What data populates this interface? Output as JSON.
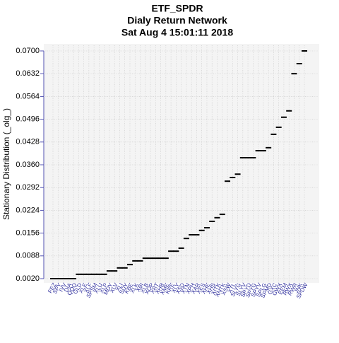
{
  "chart_data": {
    "type": "scatter",
    "title": "ETF_SPDR",
    "subtitle": "Dialy Return Network",
    "date": "Sat Aug  4 15:01:11 2018",
    "y_label": "Stationary Distribution (_olg_)",
    "categories": [
      "FEZ",
      "SPY",
      "IVV",
      "DIA",
      "QQQ",
      "GLD",
      "XLE",
      "XLF",
      "SPSM",
      "XLU",
      "XLP",
      "MDY",
      "XLV",
      "XLI",
      "SDY",
      "KBE",
      "XLK",
      "XBI",
      "XLB",
      "XOP",
      "XRT",
      "XHB",
      "XME",
      "KRE",
      "XLY",
      "XSD",
      "XTN",
      "XPH",
      "XAR",
      "XES",
      "XHE",
      "XHS",
      "XITK",
      "XNTK",
      "XSW",
      "XTL",
      "SLYG",
      "SLYV",
      "SPYD",
      "SPYG",
      "SPYV",
      "SPLG",
      "SPMD",
      "GXC",
      "GWX",
      "EEM",
      "RWX",
      "RWR",
      "JNK",
      "SPDW"
    ],
    "values": [
      0.002,
      0.002,
      0.002,
      0.002,
      0.002,
      0.0033,
      0.0033,
      0.0033,
      0.0033,
      0.0033,
      0.0033,
      0.0043,
      0.0043,
      0.0052,
      0.0052,
      0.0062,
      0.0073,
      0.0073,
      0.0081,
      0.0081,
      0.0081,
      0.0081,
      0.0081,
      0.0102,
      0.0102,
      0.0111,
      0.014,
      0.0151,
      0.0151,
      0.0164,
      0.0172,
      0.0191,
      0.0202,
      0.0212,
      0.0311,
      0.0322,
      0.0332,
      0.0381,
      0.0381,
      0.0381,
      0.0402,
      0.0402,
      0.0411,
      0.0451,
      0.0472,
      0.0502,
      0.0521,
      0.0632,
      0.0662,
      0.07
    ],
    "color": "#000000",
    "ylim": [
      0.002,
      0.07
    ],
    "yticks": [
      {
        "value": 0.002,
        "label": "0.0020"
      },
      {
        "value": 0.0088,
        "label": "0.0088"
      },
      {
        "value": 0.0156,
        "label": "0.0156"
      },
      {
        "value": 0.0224,
        "label": "0.0224"
      },
      {
        "value": 0.0292,
        "label": "0.0292"
      },
      {
        "value": 0.036,
        "label": "0.0360"
      },
      {
        "value": 0.0428,
        "label": "0.0428"
      },
      {
        "value": 0.0496,
        "label": "0.0496"
      },
      {
        "value": 0.0564,
        "label": "0.0564"
      },
      {
        "value": 0.0632,
        "label": "0.0632"
      },
      {
        "value": 0.07,
        "label": "0.0700"
      }
    ],
    "grid": true
  }
}
